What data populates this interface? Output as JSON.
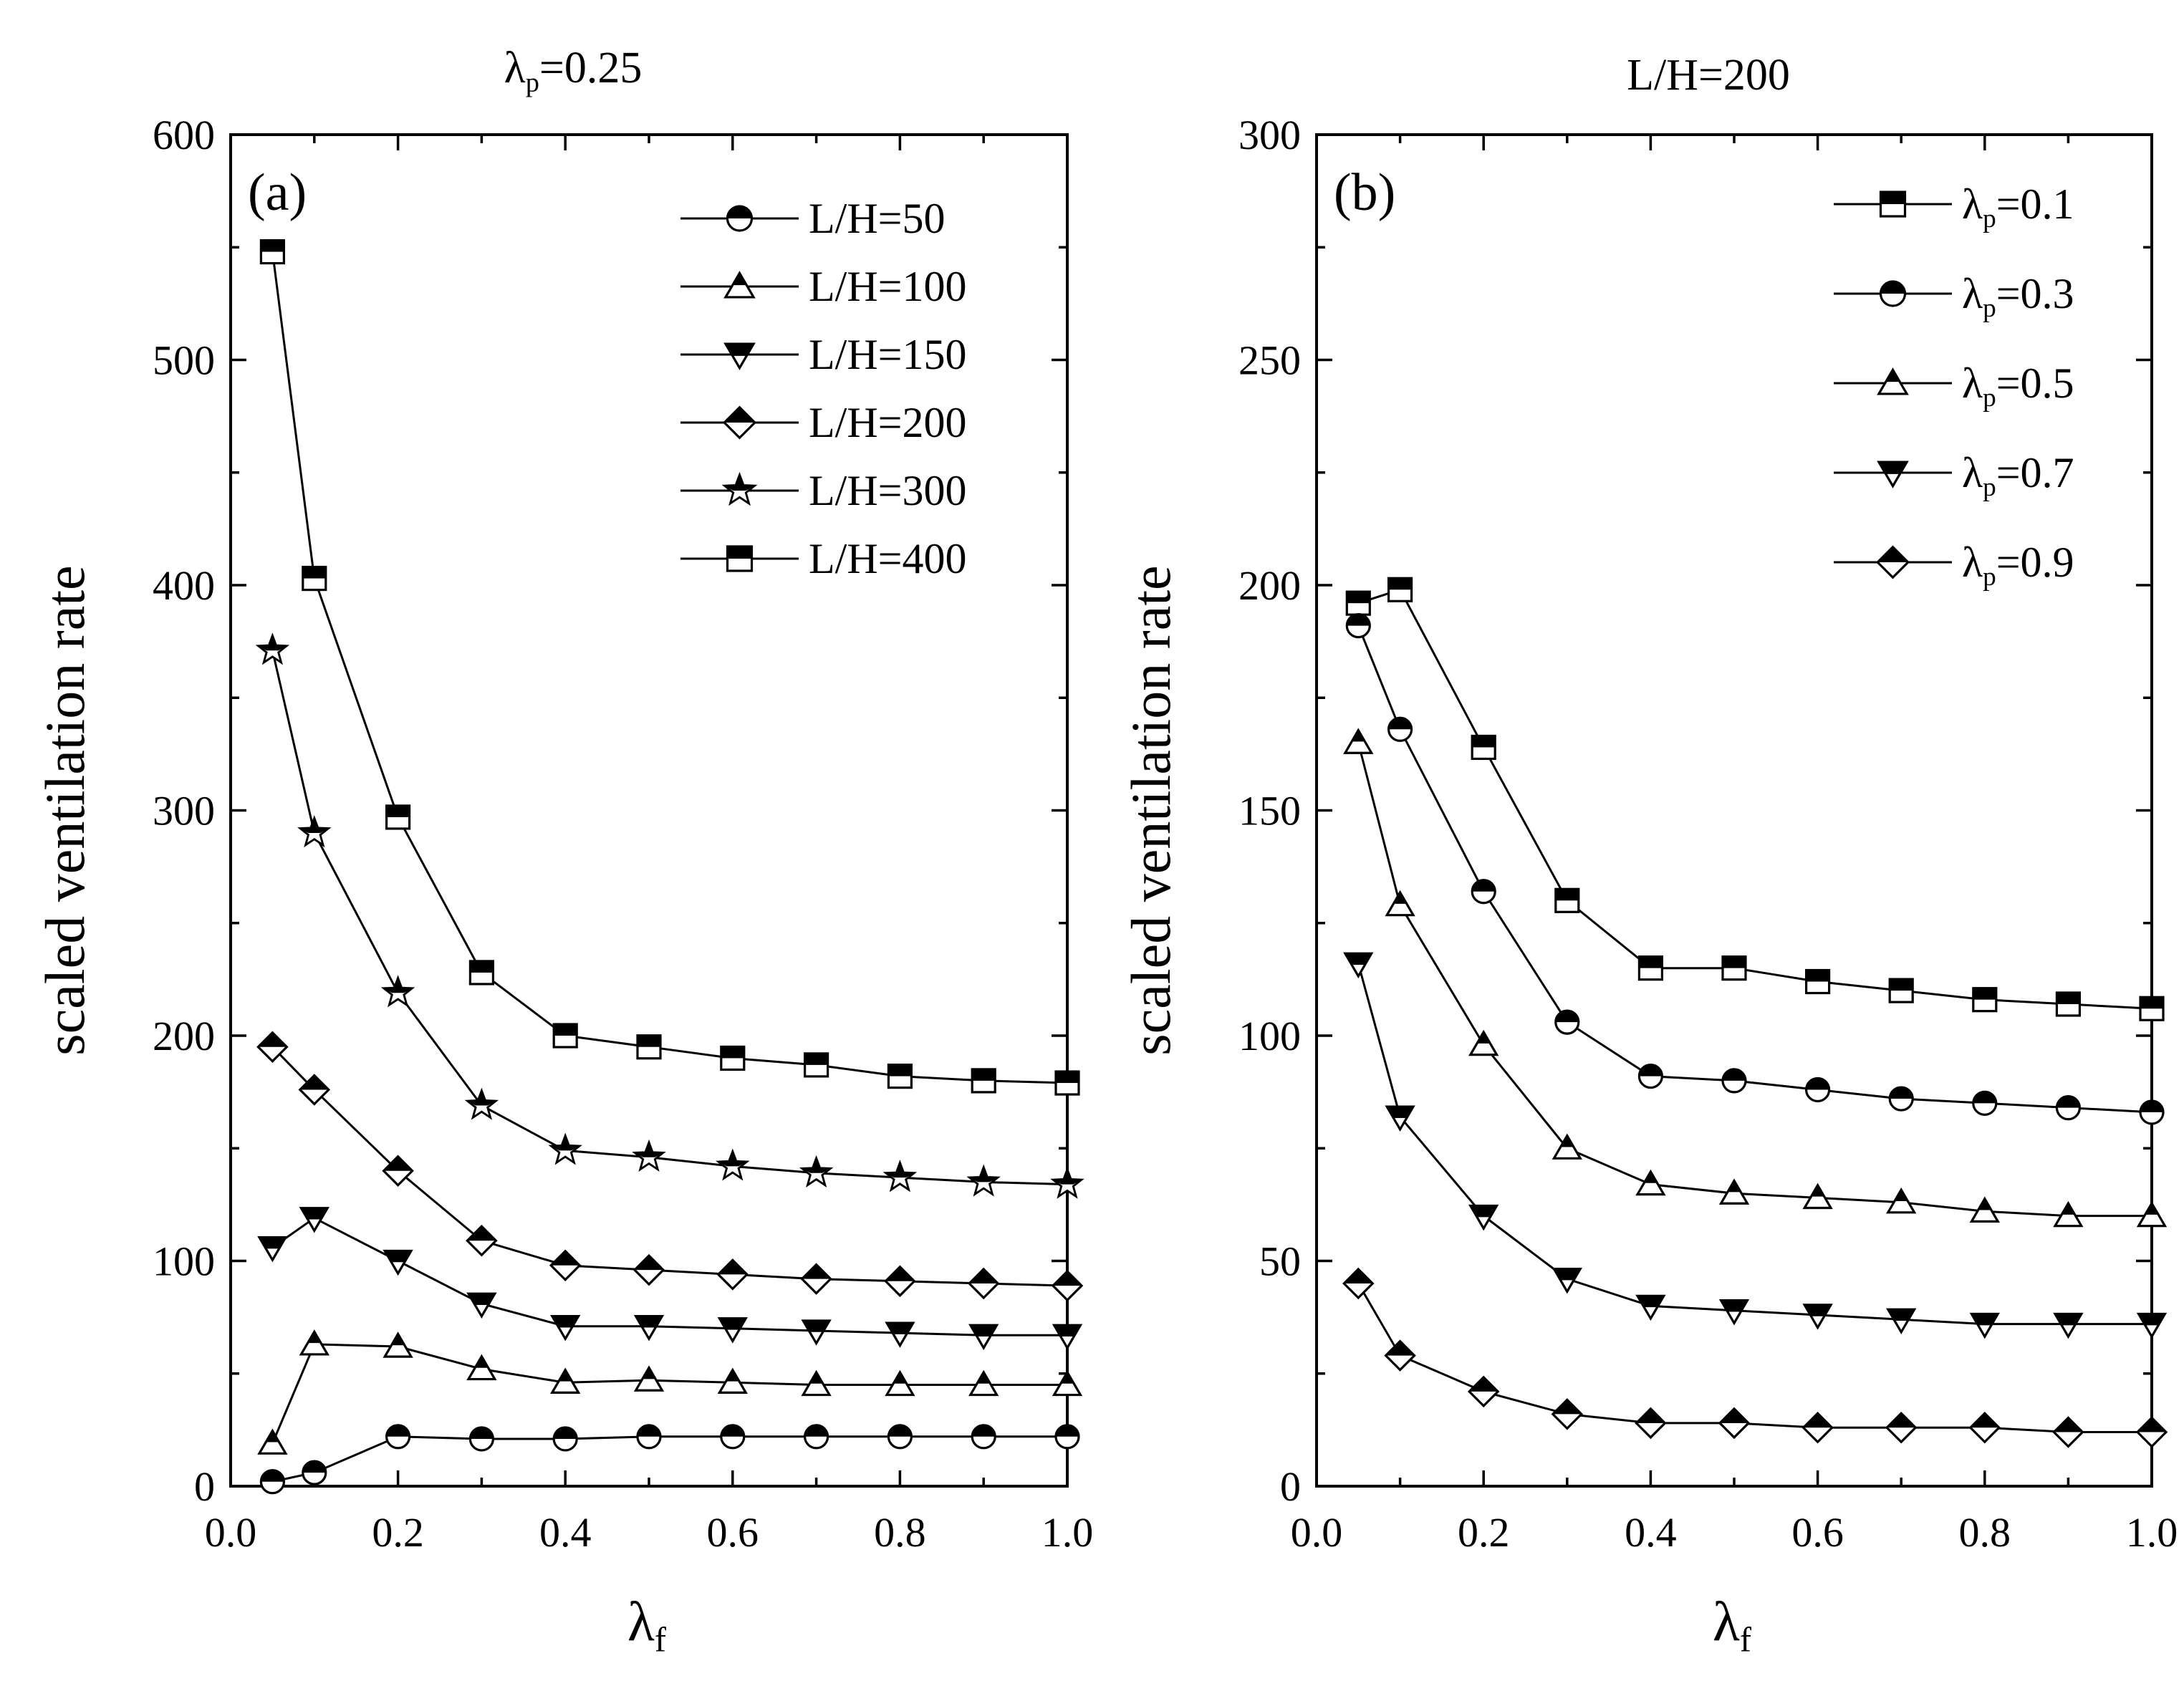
{
  "chart_data": [
    {
      "type": "line",
      "panel_label": "(a)",
      "title": "λp=0.25",
      "title_main": "λ",
      "title_sub": "p",
      "title_suffix": "=0.25",
      "xlabel_main": "λ",
      "xlabel_sub": "f",
      "ylabel": "scaled ventilation rate",
      "xlim": [
        0.0,
        1.0
      ],
      "ylim": [
        0,
        600
      ],
      "xticks": [
        "0.0",
        "0.2",
        "0.4",
        "0.6",
        "0.8",
        "1.0"
      ],
      "yticks": [
        "0",
        "100",
        "200",
        "300",
        "400",
        "500",
        "600"
      ],
      "legend_position": "top-right",
      "x": [
        0.05,
        0.1,
        0.2,
        0.3,
        0.4,
        0.5,
        0.6,
        0.7,
        0.8,
        0.9,
        1.0
      ],
      "series": [
        {
          "name": "L/H=50",
          "label": "L/H=50",
          "marker": "circle",
          "values": [
            2,
            6,
            22,
            21,
            21,
            22,
            22,
            22,
            22,
            22,
            22
          ]
        },
        {
          "name": "L/H=100",
          "label": "L/H=100",
          "marker": "triangle-up",
          "values": [
            19,
            63,
            62,
            52,
            46,
            47,
            46,
            45,
            45,
            45,
            45
          ]
        },
        {
          "name": "L/H=150",
          "label": "L/H=150",
          "marker": "triangle-down",
          "values": [
            106,
            119,
            100,
            81,
            71,
            71,
            70,
            69,
            68,
            67,
            67
          ]
        },
        {
          "name": "L/H=200",
          "label": "L/H=200",
          "marker": "diamond",
          "values": [
            195,
            176,
            140,
            109,
            98,
            96,
            94,
            92,
            91,
            90,
            89
          ]
        },
        {
          "name": "L/H=300",
          "label": "L/H=300",
          "marker": "star",
          "values": [
            371,
            290,
            219,
            169,
            149,
            146,
            142,
            139,
            137,
            135,
            134
          ]
        },
        {
          "name": "L/H=400",
          "label": "L/H=400",
          "marker": "square",
          "values": [
            548,
            403,
            297,
            228,
            200,
            195,
            190,
            187,
            182,
            180,
            179
          ]
        }
      ]
    },
    {
      "type": "line",
      "panel_label": "(b)",
      "title": "L/H=200",
      "xlabel_main": "λ",
      "xlabel_sub": "f",
      "ylabel": "scaled ventilation rate",
      "xlim": [
        0.0,
        1.0
      ],
      "ylim": [
        0,
        300
      ],
      "xticks": [
        "0.0",
        "0.2",
        "0.4",
        "0.6",
        "0.8",
        "1.0"
      ],
      "yticks": [
        "0",
        "50",
        "100",
        "150",
        "200",
        "250",
        "300"
      ],
      "legend_position": "top-right",
      "x": [
        0.05,
        0.1,
        0.2,
        0.3,
        0.4,
        0.5,
        0.6,
        0.7,
        0.8,
        0.9,
        1.0
      ],
      "series": [
        {
          "name": "λp=0.1",
          "label_main": "λ",
          "label_sub": "p",
          "label_suffix": "=0.1",
          "marker": "square",
          "values": [
            196,
            199,
            164,
            130,
            115,
            115,
            112,
            110,
            108,
            107,
            106
          ]
        },
        {
          "name": "λp=0.3",
          "label_main": "λ",
          "label_sub": "p",
          "label_suffix": "=0.3",
          "marker": "circle",
          "values": [
            191,
            168,
            132,
            103,
            91,
            90,
            88,
            86,
            85,
            84,
            83
          ]
        },
        {
          "name": "λp=0.5",
          "label_main": "λ",
          "label_sub": "p",
          "label_suffix": "=0.5",
          "marker": "triangle-up",
          "values": [
            165,
            129,
            98,
            75,
            67,
            65,
            64,
            63,
            61,
            60,
            60
          ]
        },
        {
          "name": "λp=0.7",
          "label_main": "λ",
          "label_sub": "p",
          "label_suffix": "=0.7",
          "marker": "triangle-down",
          "values": [
            116,
            82,
            60,
            46,
            40,
            39,
            38,
            37,
            36,
            36,
            36
          ]
        },
        {
          "name": "λp=0.9",
          "label_main": "λ",
          "label_sub": "p",
          "label_suffix": "=0.9",
          "marker": "diamond",
          "values": [
            45,
            29,
            21,
            16,
            14,
            14,
            13,
            13,
            13,
            12,
            12
          ]
        }
      ]
    }
  ]
}
